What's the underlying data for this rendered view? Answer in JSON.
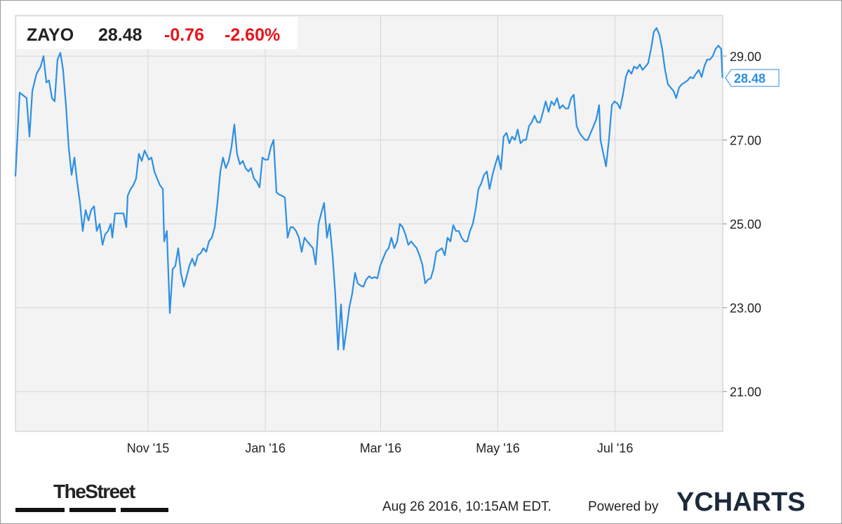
{
  "chart_data": {
    "type": "line",
    "header": {
      "ticker": "ZAYO",
      "price": "28.48",
      "change": "-0.76",
      "change_pct": "-2.60%"
    },
    "x": [
      0,
      2.2,
      5.8,
      7.3,
      8.8,
      11.0,
      13.1,
      14.6,
      16.1,
      17.5,
      19.0,
      20.4,
      21.9,
      23.4,
      24.8,
      26.3,
      27.7,
      29.2,
      30.7,
      32.1,
      33.6,
      35.0,
      36.5,
      38.0,
      39.4,
      40.9,
      42.3,
      43.8,
      45.3,
      46.7,
      48.2,
      49.6,
      50.4,
      51.8,
      54.0,
      56.2,
      57.7,
      58.4,
      59.9,
      61.3,
      62.8,
      64.2,
      65.7,
      67.2,
      69.4,
      70.8,
      72.3,
      73.7,
      75.2,
      76.7,
      77.4,
      78.8,
      80.3,
      81.8,
      83.2,
      84.7,
      86.1,
      87.6,
      89.1,
      90.5,
      92.0,
      93.4,
      94.9,
      96.4,
      97.8,
      99.3,
      100.7,
      102.2,
      103.7,
      105.1,
      106.6,
      108.0,
      109.5,
      111.0,
      112.4,
      113.9,
      115.3,
      116.8,
      118.3,
      119.7,
      121.2,
      122.6,
      124.1,
      125.6,
      127.0,
      128.5,
      129.9,
      131.4,
      132.9,
      134.3,
      135.8,
      137.2,
      138.7,
      140.2,
      141.6,
      143.1,
      144.5,
      146.0,
      147.5,
      148.9,
      150.4,
      151.8,
      153.3,
      154.8,
      156.2,
      157.7,
      159.1,
      160.6,
      162.1,
      163.5,
      165.0,
      166.4,
      167.9,
      169.4,
      170.8,
      172.3,
      173.7,
      175.2,
      176.7,
      178.1,
      179.6,
      181.0,
      182.5,
      184.0,
      185.4,
      186.9,
      188.3,
      189.8,
      191.3,
      192.7,
      194.2,
      195.6,
      197.1,
      198.6,
      200.0,
      201.5,
      202.9,
      204.4,
      205.9,
      207.3,
      208.8,
      210.2,
      211.7,
      213.2,
      214.6,
      216.1,
      217.5,
      219.0,
      220.5,
      221.9,
      223.4,
      224.8,
      226.3,
      227.8,
      229.2,
      230.7,
      232.1,
      233.6,
      235.1,
      236.5,
      238.0,
      239.4,
      240.9,
      242.4,
      243.8,
      245.3,
      246.7,
      248.2,
      249.7,
      251.1,
      252.6,
      254.0,
      255.5,
      257.0,
      258.4,
      259.9,
      261.3,
      262.8,
      264.3,
      265.7,
      267.2,
      268.6,
      270.1,
      271.6,
      273.0,
      274.5,
      275.9,
      277.4,
      278.9,
      280.3,
      281.8,
      283.2,
      284.7,
      286.2,
      287.6,
      289.1,
      290.5,
      292.0,
      293.5,
      294.9,
      296.4,
      297.8,
      299.3,
      300.8,
      302.2,
      303.7,
      304.4,
      305.9,
      307.3,
      308.8,
      310.3,
      311.7,
      313.2,
      314.6,
      316.1,
      317.6,
      319.0,
      320.5,
      321.9,
      323.4,
      324.9,
      326.3,
      327.8,
      329.2,
      330.7,
      332.2,
      333.6,
      335.1,
      336.5,
      338.0,
      339.5,
      340.9,
      342.4,
      343.8,
      345.3,
      346.8,
      348.2,
      349.7,
      351.1,
      352.6,
      354.1,
      355.5,
      357.0,
      358.4,
      359.9,
      361.4,
      362.8,
      364.3,
      365.7,
      367.2,
      367.9
    ],
    "series": [
      {
        "color": "#2d8fe3",
        "values": [
          26.13,
          28.13,
          28.0,
          27.08,
          28.17,
          28.58,
          28.75,
          29.0,
          28.37,
          28.42,
          28.0,
          27.92,
          28.92,
          29.08,
          28.67,
          27.83,
          26.83,
          26.17,
          26.58,
          26.0,
          25.5,
          24.83,
          25.33,
          25.08,
          25.33,
          25.42,
          24.83,
          25.0,
          24.5,
          24.75,
          24.83,
          25.0,
          24.67,
          25.25,
          25.25,
          25.25,
          24.92,
          25.67,
          25.83,
          25.92,
          26.08,
          26.67,
          26.5,
          26.75,
          26.53,
          26.58,
          26.25,
          26.08,
          25.92,
          25.83,
          24.58,
          24.83,
          22.87,
          23.92,
          24.0,
          24.42,
          23.83,
          23.5,
          23.75,
          24.0,
          24.17,
          24.0,
          24.25,
          24.3,
          24.42,
          24.33,
          24.58,
          24.67,
          24.92,
          25.5,
          26.25,
          26.58,
          26.33,
          26.5,
          26.83,
          27.37,
          26.67,
          26.42,
          26.5,
          26.33,
          26.25,
          26.33,
          26.08,
          26.0,
          25.87,
          26.58,
          26.53,
          26.53,
          26.83,
          27.0,
          25.75,
          25.7,
          25.67,
          25.63,
          24.67,
          24.92,
          24.92,
          24.83,
          24.67,
          24.33,
          24.67,
          24.58,
          24.5,
          24.42,
          24.03,
          25.0,
          25.25,
          25.5,
          24.67,
          25.0,
          24.25,
          23.33,
          22.0,
          23.08,
          22.0,
          22.5,
          23.0,
          23.33,
          23.83,
          23.58,
          23.53,
          23.5,
          23.67,
          23.75,
          23.7,
          23.73,
          23.7,
          24.0,
          24.17,
          24.33,
          24.42,
          24.67,
          24.42,
          24.58,
          25.0,
          24.92,
          24.75,
          24.5,
          24.58,
          24.5,
          24.42,
          24.25,
          24.03,
          23.58,
          23.67,
          23.7,
          23.92,
          24.33,
          24.37,
          24.42,
          24.25,
          24.67,
          24.58,
          24.97,
          24.83,
          24.83,
          24.67,
          24.58,
          24.58,
          24.83,
          25.0,
          25.33,
          25.83,
          25.97,
          26.17,
          26.25,
          25.83,
          26.17,
          26.42,
          26.63,
          26.3,
          27.08,
          27.17,
          26.92,
          27.08,
          27.0,
          27.25,
          26.92,
          27.0,
          27.0,
          27.33,
          27.42,
          27.58,
          27.42,
          27.42,
          27.67,
          27.92,
          27.67,
          27.92,
          27.83,
          28.0,
          27.75,
          27.83,
          27.75,
          27.75,
          28.0,
          28.08,
          27.33,
          27.17,
          27.08,
          27.0,
          27.0,
          27.17,
          27.33,
          27.5,
          27.83,
          27.0,
          26.67,
          26.37,
          27.0,
          27.83,
          27.92,
          27.87,
          27.75,
          28.08,
          28.5,
          28.67,
          28.58,
          28.75,
          28.7,
          28.8,
          28.67,
          28.75,
          28.83,
          29.17,
          29.58,
          29.67,
          29.5,
          29.17,
          28.67,
          28.33,
          28.25,
          28.17,
          28.0,
          28.25,
          28.33,
          28.37,
          28.42,
          28.5,
          28.47,
          28.58,
          28.67,
          28.5,
          28.75,
          28.92,
          28.92,
          29.0,
          29.17,
          29.25,
          29.17,
          28.48
        ]
      }
    ],
    "xlim": [
      0,
      368
    ],
    "xticks": [
      {
        "value": 69,
        "label": "Nov '15"
      },
      {
        "value": 130,
        "label": "Jan '16"
      },
      {
        "value": 190,
        "label": "Mar '16"
      },
      {
        "value": 251,
        "label": "May '16"
      },
      {
        "value": 312,
        "label": "Jul '16"
      }
    ],
    "ylim": [
      20.05,
      29.97
    ],
    "yticks": [
      {
        "value": 21,
        "label": "21.00"
      },
      {
        "value": 23,
        "label": "23.00"
      },
      {
        "value": 25,
        "label": "25.00"
      },
      {
        "value": 27,
        "label": "27.00"
      },
      {
        "value": 29,
        "label": "29.00"
      }
    ],
    "grid": true
  },
  "footer": {
    "brand": "TheStreet",
    "timestamp": "Aug 26 2016, 10:15AM EDT.",
    "powered": "Powered by",
    "provider": "YCHARTS"
  }
}
